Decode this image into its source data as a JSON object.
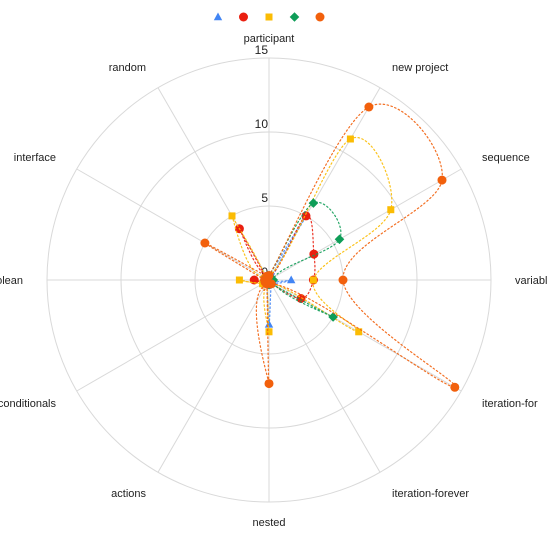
{
  "chart_data": {
    "type": "radar",
    "title": "",
    "legend_position": "top",
    "grid": true,
    "axes": [
      "participant",
      "new project",
      "sequence",
      "variable",
      "iteration-for",
      "iteration-forever",
      "nested",
      "actions",
      "conditionals",
      "boolean",
      "interface",
      "random"
    ],
    "rlim": [
      0,
      15
    ],
    "rticks": [
      0,
      5,
      10,
      15
    ],
    "series": [
      {
        "marker": "triangle",
        "color": "#4285f4",
        "values": [
          0.3,
          5.0,
          0.3,
          1.5,
          0.3,
          0.3,
          3.0,
          0.3,
          0.3,
          0.3,
          0.3,
          0.3
        ]
      },
      {
        "marker": "circle",
        "color": "#ea1f10",
        "values": [
          0.3,
          5.0,
          3.5,
          3.0,
          2.5,
          0.3,
          0.3,
          0.3,
          0.3,
          1.0,
          0.3,
          4.0
        ]
      },
      {
        "marker": "square",
        "color": "#fbbc04",
        "values": [
          0.3,
          11.0,
          9.5,
          3.0,
          7.0,
          0.3,
          3.5,
          0.3,
          0.5,
          2.0,
          0.3,
          5.0
        ]
      },
      {
        "marker": "diamond",
        "color": "#0f9d58",
        "values": [
          0.3,
          6.0,
          5.5,
          0.3,
          5.0,
          0.3,
          0.3,
          0.3,
          0.3,
          0.3,
          0.3,
          0.3
        ]
      },
      {
        "marker": "circle",
        "color": "#f2600c",
        "values": [
          0.3,
          13.5,
          13.5,
          5.0,
          14.5,
          0.3,
          7.0,
          0.3,
          0.3,
          0.3,
          5.0,
          0.3
        ]
      }
    ]
  }
}
